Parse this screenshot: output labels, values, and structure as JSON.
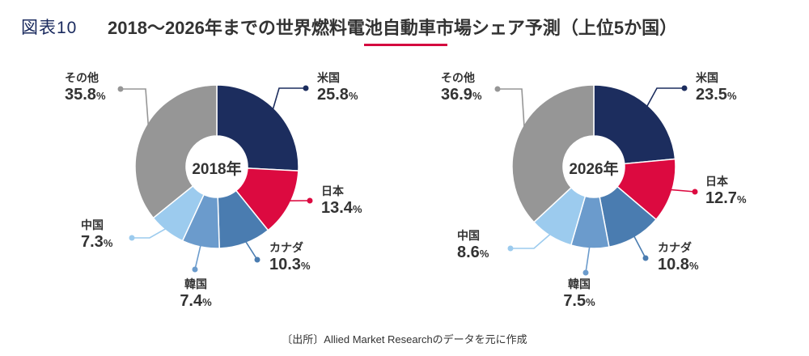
{
  "header": {
    "figure_label": "図表10",
    "title": "2018～2026年までの世界燃料電池自動車市場シェア予測（上位5か国）"
  },
  "source_note": "〔出所〕Allied Market Researchのデータを元に作成",
  "colors": {
    "米国": "#1c2d5e",
    "日本": "#dc0a40",
    "カナダ": "#4a7cb0",
    "韓国": "#6b9bcc",
    "中国": "#9ccbee",
    "その他": "#969696",
    "title_underline": "#d4093f"
  },
  "chart_data": [
    {
      "type": "pie",
      "center_label": "2018年",
      "slices": [
        {
          "name": "米国",
          "value": 25.8
        },
        {
          "name": "日本",
          "value": 13.4
        },
        {
          "name": "カナダ",
          "value": 10.3
        },
        {
          "name": "韓国",
          "value": 7.4
        },
        {
          "name": "中国",
          "value": 7.3
        },
        {
          "name": "その他",
          "value": 35.8
        }
      ],
      "unit": "%"
    },
    {
      "type": "pie",
      "center_label": "2026年",
      "slices": [
        {
          "name": "米国",
          "value": 23.5
        },
        {
          "name": "日本",
          "value": 12.7
        },
        {
          "name": "カナダ",
          "value": 10.8
        },
        {
          "name": "韓国",
          "value": 7.5
        },
        {
          "name": "中国",
          "value": 8.6
        },
        {
          "name": "その他",
          "value": 36.9
        }
      ],
      "unit": "%"
    }
  ]
}
